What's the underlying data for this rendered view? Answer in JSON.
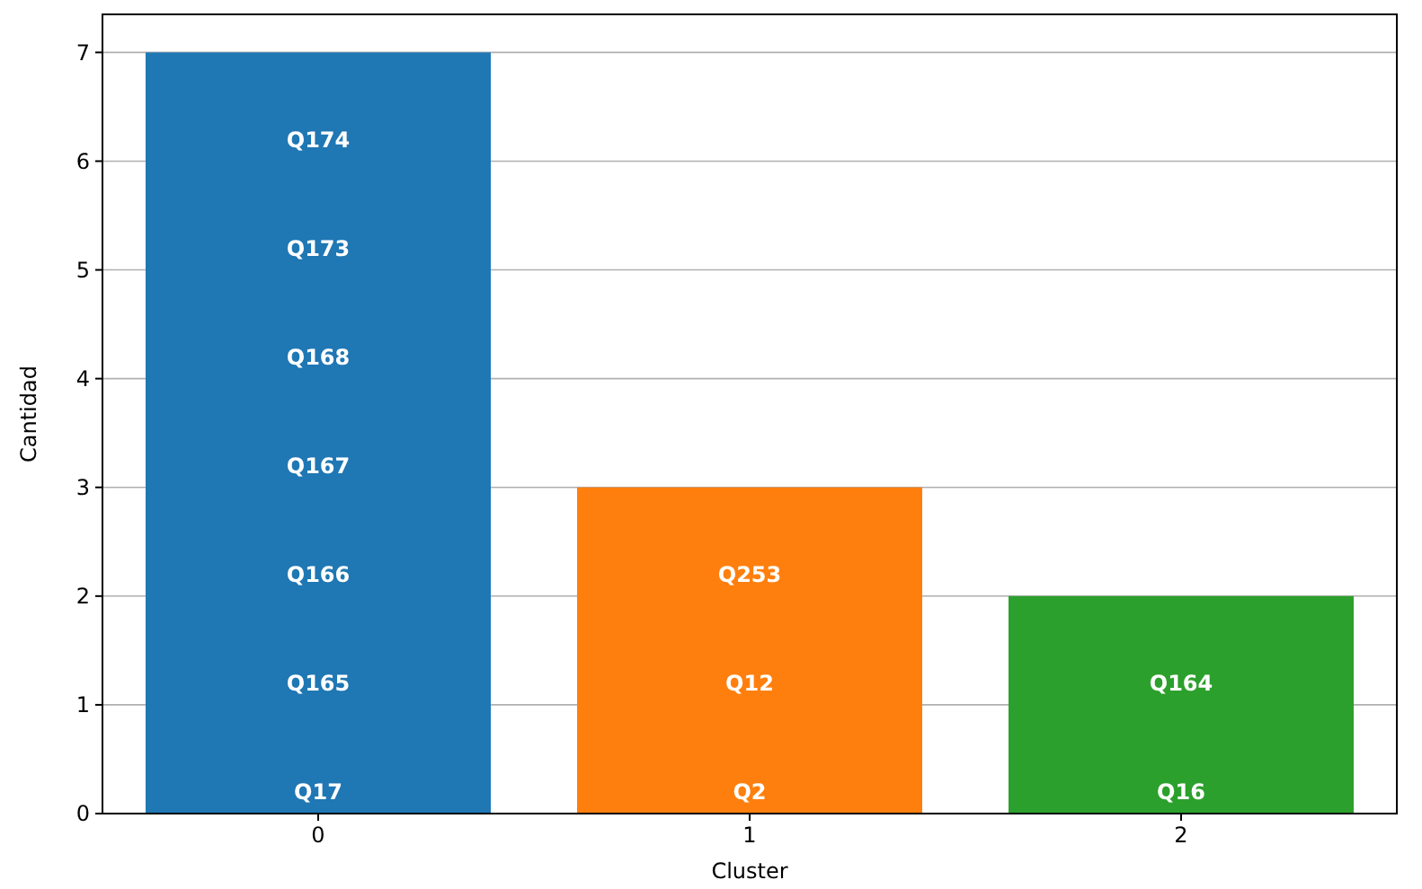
{
  "chart_data": {
    "type": "bar",
    "xlabel": "Cluster",
    "ylabel": "Cantidad",
    "categories": [
      "0",
      "1",
      "2"
    ],
    "values": [
      7,
      3,
      2
    ],
    "colors": [
      "#1f77b4",
      "#ff7f0e",
      "#2ca02c"
    ],
    "ylim": [
      0,
      7.35
    ],
    "yticks": [
      0,
      1,
      2,
      3,
      4,
      5,
      6,
      7
    ],
    "grid": "y",
    "annotations": [
      "Q17",
      "Q165",
      "Q166",
      "Q167",
      "Q168",
      "Q173",
      "Q174",
      "Q2",
      "Q12",
      "Q253",
      "Q16",
      "Q164"
    ]
  }
}
